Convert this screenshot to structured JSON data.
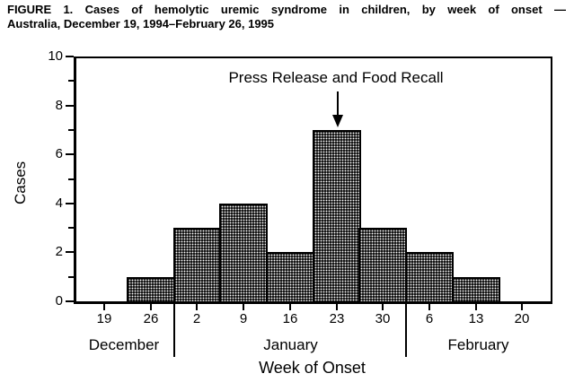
{
  "figure": {
    "title_line1": "FIGURE 1. Cases of hemolytic uremic syndrome in children, by week of onset —",
    "title_line2": "Australia, December 19, 1994–February 26, 1995"
  },
  "chart_data": {
    "type": "bar",
    "title": "FIGURE 1. Cases of hemolytic uremic syndrome in children, by week of onset — Australia, December 19, 1994–February 26, 1995",
    "xlabel": "Week of Onset",
    "ylabel": "Cases",
    "categories": [
      "19",
      "26",
      "2",
      "9",
      "16",
      "23",
      "30",
      "6",
      "13",
      "20"
    ],
    "values": [
      0,
      1,
      3,
      4,
      2,
      7,
      3,
      2,
      1,
      0
    ],
    "month_groups": [
      {
        "label": "December",
        "start_index": 0,
        "end_index": 1
      },
      {
        "label": "January",
        "start_index": 2,
        "end_index": 6
      },
      {
        "label": "February",
        "start_index": 7,
        "end_index": 9
      }
    ],
    "ylim": [
      0,
      10
    ],
    "yticks_major": [
      0,
      2,
      4,
      6,
      8,
      10
    ],
    "yticks_minor": [
      1,
      3,
      5,
      7,
      9
    ],
    "grid": false,
    "legend": null,
    "annotation": {
      "text": "Press Release and Food Recall",
      "arrow_points_to_category": "23",
      "arrow_points_to_value": 7
    },
    "bar_fill": "black-stipple-pattern",
    "colors": {
      "bar_outline": "#000000",
      "bar_fill_base": "#161616",
      "bar_fill_dots": "#ffffff",
      "axis": "#000000",
      "text": "#000000",
      "background": "#ffffff"
    }
  }
}
